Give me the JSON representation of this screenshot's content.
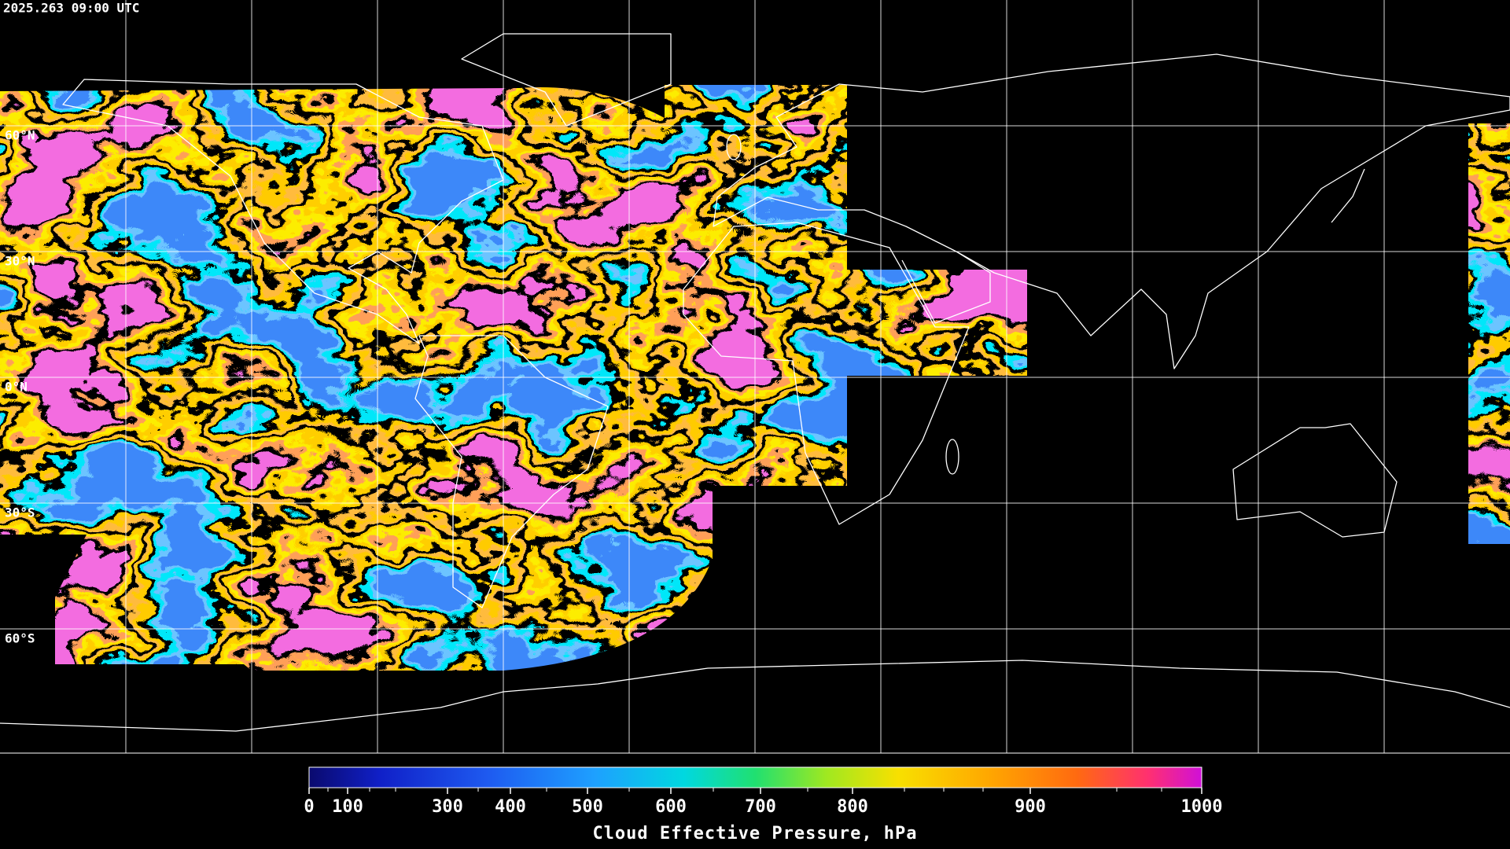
{
  "timestamp": "2025.263 09:00 UTC",
  "latitude_labels": [
    "60°N",
    "30°N",
    "0°N",
    "30°S",
    "60°S"
  ],
  "colorbar": {
    "ticks": [
      0,
      100,
      300,
      400,
      500,
      600,
      700,
      800,
      900,
      1000
    ],
    "label": "Cloud Effective Pressure, hPa"
  }
}
